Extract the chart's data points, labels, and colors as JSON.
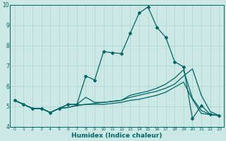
{
  "xlabel": "Humidex (Indice chaleur)",
  "background_color": "#cce8e4",
  "grid_color": "#b0d8d4",
  "line_color": "#006666",
  "xlim": [
    -0.5,
    23.5
  ],
  "ylim": [
    4,
    10
  ],
  "yticks": [
    4,
    5,
    6,
    7,
    8,
    9,
    10
  ],
  "xticks": [
    0,
    1,
    2,
    3,
    4,
    5,
    6,
    7,
    8,
    9,
    10,
    11,
    12,
    13,
    14,
    15,
    16,
    17,
    18,
    19,
    20,
    21,
    22,
    23
  ],
  "series": [
    {
      "y": [
        5.3,
        5.1,
        4.9,
        4.9,
        4.7,
        4.9,
        4.95,
        5.05,
        5.1,
        5.1,
        5.1,
        5.15,
        5.2,
        5.3,
        5.35,
        5.45,
        5.55,
        5.7,
        5.95,
        6.2,
        5.35,
        4.65,
        4.6,
        4.55
      ],
      "marker": false,
      "lw": 0.9
    },
    {
      "y": [
        5.3,
        5.1,
        4.9,
        4.9,
        4.7,
        4.9,
        4.95,
        5.05,
        5.1,
        5.15,
        5.2,
        5.25,
        5.3,
        5.45,
        5.55,
        5.65,
        5.75,
        5.9,
        6.1,
        6.5,
        6.85,
        5.55,
        4.75,
        4.55
      ],
      "marker": false,
      "lw": 0.9
    },
    {
      "y": [
        5.3,
        5.1,
        4.9,
        4.9,
        4.7,
        4.9,
        5.1,
        5.1,
        5.45,
        5.2,
        5.2,
        5.25,
        5.3,
        5.55,
        5.65,
        5.75,
        5.9,
        6.1,
        6.4,
        6.8,
        5.4,
        4.8,
        4.6,
        4.55
      ],
      "marker": false,
      "lw": 0.9
    },
    {
      "y": [
        5.3,
        5.1,
        4.9,
        4.9,
        4.7,
        4.9,
        5.1,
        5.1,
        6.5,
        6.3,
        7.7,
        7.65,
        7.6,
        8.6,
        9.6,
        9.9,
        8.9,
        8.4,
        7.2,
        6.95,
        4.4,
        5.05,
        4.6,
        4.55
      ],
      "marker": true,
      "lw": 0.9
    }
  ]
}
